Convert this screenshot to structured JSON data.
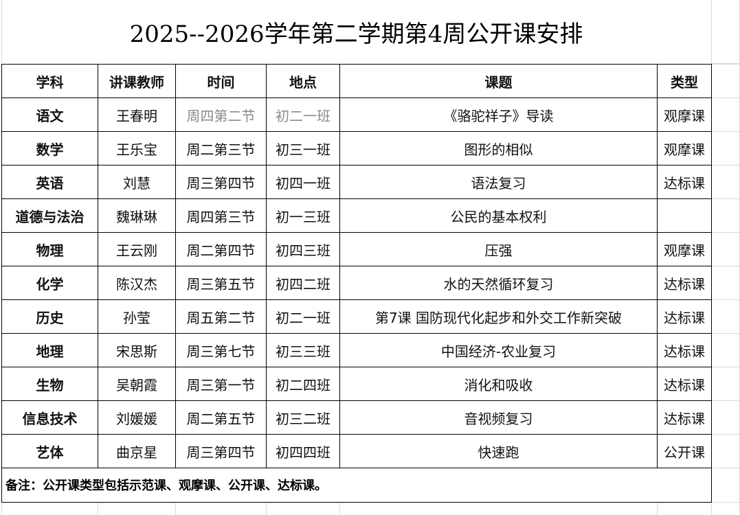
{
  "title": "2025--2026学年第二学期第4周公开课安排",
  "table": {
    "headers": [
      "学科",
      "讲课教师",
      "时间",
      "地点",
      "课题",
      "类型"
    ],
    "rows": [
      [
        "语文",
        "王春明",
        "周四第二节",
        "初二一班",
        "《骆驼祥子》导读",
        "观摩课"
      ],
      [
        "数学",
        "王乐宝",
        "周二第三节",
        "初三一班",
        "图形的相似",
        "观摩课"
      ],
      [
        "英语",
        "刘慧",
        "周三第四节",
        "初四一班",
        "语法复习",
        "达标课"
      ],
      [
        "道德与法治",
        "魏琳琳",
        "周四第三节",
        "初一三班",
        "公民的基本权利",
        null
      ],
      [
        "物理",
        "王云刚",
        "周二第四节",
        "初四三班",
        "压强",
        "观摩课"
      ],
      [
        "化学",
        "陈汉杰",
        "周三第五节",
        "初四二班",
        "水的天然循环复习",
        "达标课"
      ],
      [
        "历史",
        "孙莹",
        "周五第二节",
        "初二一班",
        "第7课  国防现代化起步和外交工作新突破",
        "达标课"
      ],
      [
        "地理",
        "宋思斯",
        "周三第七节",
        "初三三班",
        "中国经济-农业复习",
        "达标课"
      ],
      [
        "生物",
        "吴朝霞",
        "周三第一节",
        "初二四班",
        "消化和吸收",
        "达标课"
      ],
      [
        "信息技术",
        "刘媛媛",
        "周二第五节",
        "初三二班",
        "音视频复习",
        "达标课"
      ],
      [
        "艺体",
        "曲京星",
        "周三第四节",
        "初四四班",
        "快速跑",
        "公开课"
      ]
    ]
  },
  "note": "备注：公开课类型包括示范课、观摩课、公开课、达标课。"
}
